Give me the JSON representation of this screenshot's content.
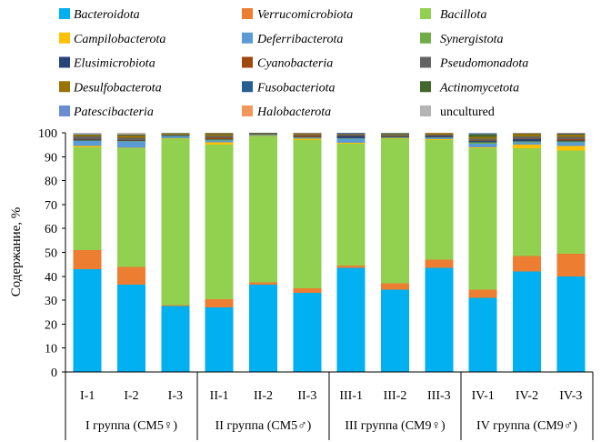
{
  "chart_data": {
    "type": "bar",
    "stacked": true,
    "categories": [
      "I-1",
      "I-2",
      "I-3",
      "II-1",
      "II-2",
      "II-3",
      "III-1",
      "III-2",
      "III-3",
      "IV-1",
      "IV-2",
      "IV-3"
    ],
    "group_labels": [
      "I группа (СМ5♀)",
      "II группа (СМ5♂)",
      "III группа (СМ9♀)",
      "IV группа (СМ9♂)"
    ],
    "ylabel": "Содержание, %",
    "ylim": [
      0,
      100
    ],
    "yticks": [
      0,
      10,
      20,
      30,
      40,
      50,
      60,
      70,
      80,
      90,
      100
    ],
    "grid": false,
    "legend": "top",
    "series": [
      {
        "name": "Bacteroidota",
        "color": "#00B0F0",
        "italic": true,
        "values": [
          43,
          36.5,
          27.5,
          27,
          36.5,
          33,
          43.5,
          34.5,
          43.5,
          31,
          42,
          40
        ]
      },
      {
        "name": "Verrucomicrobiota",
        "color": "#ED7D31",
        "italic": true,
        "values": [
          8,
          7.5,
          0.5,
          3.5,
          1,
          2,
          1,
          2.5,
          3.5,
          3.5,
          6.5,
          9.5
        ]
      },
      {
        "name": "Bacillota",
        "color": "#92D050",
        "italic": true,
        "values": [
          43,
          49.5,
          69.5,
          64.5,
          61,
          62,
          51,
          60.5,
          50,
          59,
          45,
          43
        ]
      },
      {
        "name": "Campilobacterota",
        "color": "#FFC000",
        "italic": true,
        "values": [
          0.5,
          0.3,
          0.2,
          1.0,
          0.1,
          0.5,
          0.3,
          0.2,
          0.3,
          0.5,
          1.5,
          2.0
        ]
      },
      {
        "name": "Deferribacterota",
        "color": "#5B9BD5",
        "italic": true,
        "values": [
          2.0,
          2.5,
          0.8,
          0.8,
          0.5,
          0.5,
          1.8,
          0.3,
          0.7,
          1.5,
          1.0,
          1.5
        ]
      },
      {
        "name": "Synergistota",
        "color": "#70AD47",
        "italic": true,
        "values": [
          0.3,
          0.2,
          0.1,
          0.3,
          0.1,
          0.1,
          0.2,
          0.1,
          0.1,
          0.5,
          0.3,
          0.3
        ]
      },
      {
        "name": "Elusimicrobiota",
        "color": "#264478",
        "italic": true,
        "values": [
          0.3,
          0.2,
          0.2,
          0.3,
          0.1,
          0.2,
          0.8,
          0.1,
          0.5,
          0.5,
          1.0,
          0.5
        ]
      },
      {
        "name": "Cyanobacteria",
        "color": "#9E480E",
        "italic": true,
        "values": [
          0.2,
          0.2,
          0.1,
          0.5,
          0.1,
          0.5,
          0.2,
          0.3,
          0.2,
          0.3,
          0.3,
          0.5
        ]
      },
      {
        "name": "Pseudomonadota",
        "color": "#636363",
        "italic": true,
        "values": [
          1.2,
          1.0,
          0.4,
          0.8,
          0.4,
          0.4,
          0.6,
          0.5,
          0.5,
          0.8,
          0.8,
          1.0
        ]
      },
      {
        "name": "Desulfobacterota",
        "color": "#997300",
        "italic": true,
        "values": [
          0.5,
          1.0,
          0.3,
          0.8,
          0.1,
          0.5,
          0.3,
          0.5,
          0.3,
          0.6,
          1.0,
          1.0
        ]
      },
      {
        "name": "Fusobacteriota",
        "color": "#255E91",
        "italic": true,
        "values": [
          0.1,
          0.1,
          0.05,
          0.1,
          0,
          0.05,
          0.1,
          0.1,
          0.1,
          0.1,
          0.1,
          0.1
        ]
      },
      {
        "name": "Actinomycetota",
        "color": "#43682B",
        "italic": true,
        "values": [
          0.2,
          0.2,
          0.1,
          0.2,
          0.1,
          0.1,
          0.1,
          0.2,
          0.1,
          1.2,
          0.2,
          0.3
        ]
      },
      {
        "name": "Patescibacteria",
        "color": "#698ED0",
        "italic": true,
        "values": [
          0.1,
          0.1,
          0.05,
          0.1,
          0,
          0.05,
          0.05,
          0.05,
          0.1,
          0.3,
          0.2,
          0.2
        ]
      },
      {
        "name": "Halobacterota",
        "color": "#F1975A",
        "italic": true,
        "values": [
          0.1,
          0.1,
          0.05,
          0.1,
          0,
          0.05,
          0.05,
          0.05,
          0.05,
          0.1,
          0.05,
          0.05
        ]
      },
      {
        "name": "uncultured",
        "color": "#B4B4B4",
        "italic": false,
        "values": [
          0.5,
          0.6,
          0.15,
          0,
          0,
          0.05,
          0,
          0.1,
          0.05,
          0.1,
          0.05,
          0.05
        ]
      }
    ]
  }
}
